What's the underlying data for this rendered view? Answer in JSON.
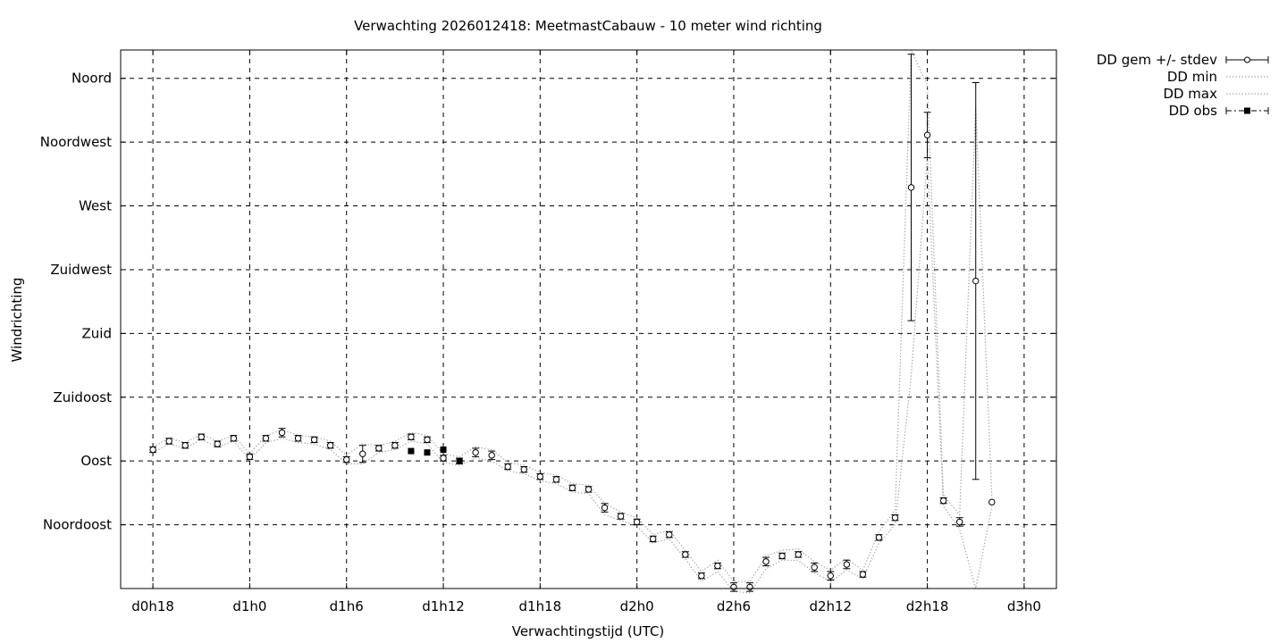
{
  "chart_data": {
    "type": "scatter",
    "title": "Verwachting 2026012418: MeetmastCabauw - 10 meter wind richting",
    "xlabel": "Verwachtingstijd (UTC)",
    "ylabel": "Windrichting",
    "x_unit": "hours",
    "xlim": [
      16,
      74
    ],
    "ylim": [
      0,
      380
    ],
    "x_ticks": [
      {
        "value": 18,
        "label": "d0h18"
      },
      {
        "value": 24,
        "label": "d1h0"
      },
      {
        "value": 30,
        "label": "d1h6"
      },
      {
        "value": 36,
        "label": "d1h12"
      },
      {
        "value": 42,
        "label": "d1h18"
      },
      {
        "value": 48,
        "label": "d2h0"
      },
      {
        "value": 54,
        "label": "d2h6"
      },
      {
        "value": 60,
        "label": "d2h12"
      },
      {
        "value": 66,
        "label": "d2h18"
      },
      {
        "value": 72,
        "label": "d3h0"
      }
    ],
    "y_ticks": [
      {
        "value": 45,
        "label": "Noordoost"
      },
      {
        "value": 90,
        "label": "Oost"
      },
      {
        "value": 135,
        "label": "Zuidoost"
      },
      {
        "value": 180,
        "label": "Zuid"
      },
      {
        "value": 225,
        "label": "Zuidwest"
      },
      {
        "value": 270,
        "label": "West"
      },
      {
        "value": 315,
        "label": "Noordwest"
      },
      {
        "value": 360,
        "label": "Noord"
      }
    ],
    "grid": true,
    "legend_position": "outside-top-right",
    "colors": {
      "points": "#000000",
      "minmax": "#aaaaaa",
      "grid": "#000000"
    },
    "series": [
      {
        "name": "DD gem +/- stdev",
        "style": "open-circle-errorbar",
        "points": [
          [
            18,
            98,
            2
          ],
          [
            19,
            104,
            2
          ],
          [
            20,
            101,
            2
          ],
          [
            21,
            107,
            2
          ],
          [
            22,
            102,
            2
          ],
          [
            23,
            106,
            2
          ],
          [
            24,
            93,
            2
          ],
          [
            25,
            106,
            2
          ],
          [
            26,
            110,
            3
          ],
          [
            27,
            106,
            2
          ],
          [
            28,
            105,
            2
          ],
          [
            29,
            101,
            2
          ],
          [
            30,
            91,
            2
          ],
          [
            31,
            95,
            6
          ],
          [
            32,
            99,
            2
          ],
          [
            33,
            101,
            2
          ],
          [
            34,
            107,
            2
          ],
          [
            35,
            105,
            2
          ],
          [
            36,
            92,
            2
          ],
          [
            37,
            90,
            2
          ],
          [
            38,
            96,
            3
          ],
          [
            39,
            94,
            3
          ],
          [
            40,
            86,
            2
          ],
          [
            41,
            84,
            2
          ],
          [
            42,
            79,
            2
          ],
          [
            43,
            77,
            2
          ],
          [
            44,
            71,
            2
          ],
          [
            45,
            70,
            2
          ],
          [
            46,
            57,
            3
          ],
          [
            47,
            51,
            2
          ],
          [
            48,
            47,
            2
          ],
          [
            49,
            35,
            2
          ],
          [
            50,
            38,
            2
          ],
          [
            51,
            24,
            2
          ],
          [
            52,
            9,
            2
          ],
          [
            53,
            16,
            2
          ],
          [
            54,
            1,
            3
          ],
          [
            55,
            1,
            3
          ],
          [
            56,
            19,
            3
          ],
          [
            57,
            23,
            2
          ],
          [
            58,
            24,
            2
          ],
          [
            59,
            15,
            3
          ],
          [
            60,
            9,
            3
          ],
          [
            61,
            17,
            3
          ],
          [
            62,
            10,
            2
          ],
          [
            63,
            36,
            2
          ],
          [
            64,
            50,
            2
          ],
          [
            65,
            283,
            94
          ],
          [
            66,
            320,
            16
          ],
          [
            67,
            62,
            2
          ],
          [
            68,
            47,
            3
          ],
          [
            69,
            217,
            140
          ],
          [
            70,
            61,
            0
          ]
        ]
      },
      {
        "name": "DD min",
        "style": "dotted-line",
        "values": [
          96,
          102,
          99,
          105,
          100,
          104,
          91,
          103,
          106,
          103,
          102,
          98,
          88,
          88,
          96,
          98,
          104,
          102,
          89,
          87,
          92,
          90,
          83,
          81,
          76,
          74,
          68,
          67,
          52,
          48,
          44,
          32,
          35,
          21,
          5,
          12,
          -2,
          -3,
          14,
          20,
          20,
          11,
          5,
          13,
          7,
          32,
          45,
          150,
          305,
          58,
          42,
          0,
          58
        ]
      },
      {
        "name": "DD max",
        "style": "dotted-line",
        "values": [
          100,
          106,
          103,
          109,
          104,
          108,
          95,
          108,
          112,
          108,
          107,
          104,
          94,
          102,
          101,
          104,
          110,
          108,
          95,
          93,
          100,
          98,
          89,
          87,
          82,
          80,
          74,
          73,
          60,
          54,
          50,
          38,
          41,
          27,
          12,
          20,
          5,
          5,
          23,
          27,
          28,
          19,
          13,
          21,
          13,
          40,
          55,
          380,
          355,
          66,
          52,
          340,
          64
        ]
      },
      {
        "name": "DD obs",
        "style": "filled-square",
        "points": [
          [
            34,
            97
          ],
          [
            35,
            96
          ],
          [
            36,
            98
          ],
          [
            37,
            90
          ]
        ]
      }
    ]
  }
}
